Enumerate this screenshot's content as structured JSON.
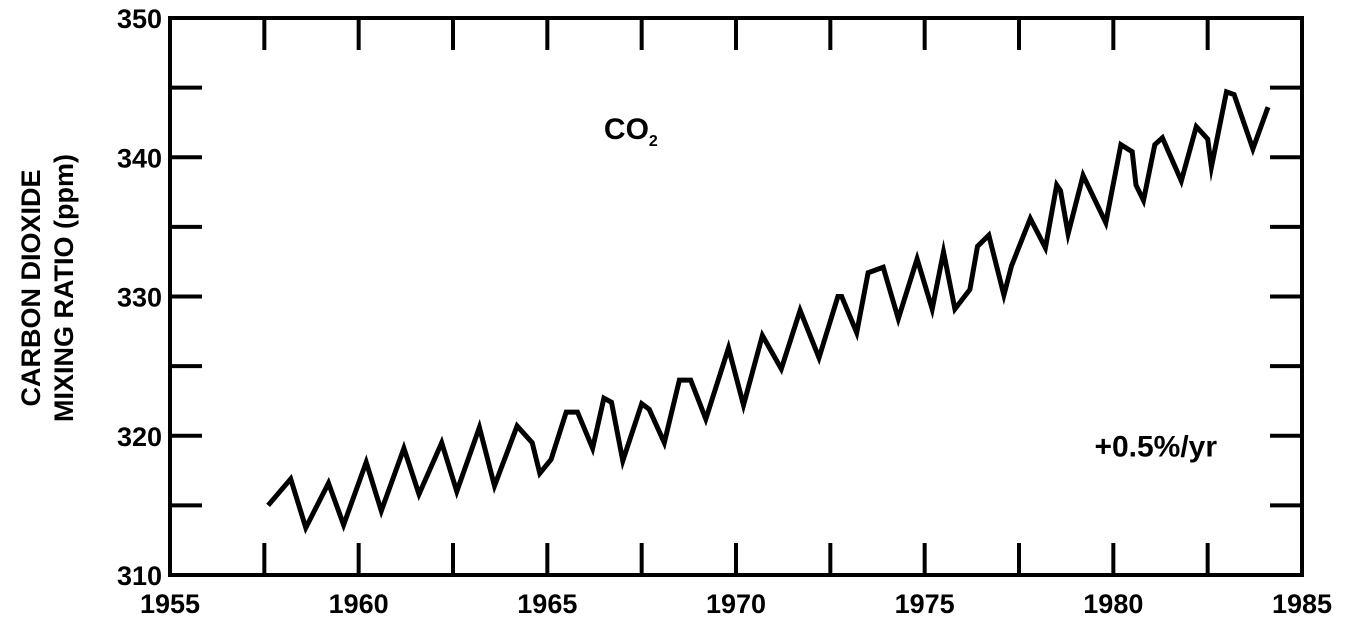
{
  "chart_data": {
    "type": "line",
    "title": "",
    "xlabel": "",
    "ylabel_lines": [
      "CARBON DIOXIDE",
      "MIXING RATIO (ppm)"
    ],
    "xlim": [
      1955,
      1985
    ],
    "ylim": [
      310,
      350
    ],
    "x_ticks": [
      1955,
      1960,
      1965,
      1970,
      1975,
      1980,
      1985
    ],
    "y_ticks": [
      310,
      320,
      330,
      340,
      350
    ],
    "grid": false,
    "line_color": "#000000",
    "annotations": [
      {
        "id": "species",
        "text": "CO",
        "subscript": "2",
        "x": 1966.5,
        "y": 341.3
      },
      {
        "id": "rate",
        "text": "+0.5%/yr",
        "x": 1979.5,
        "y": 318.5
      }
    ],
    "series": [
      {
        "x": [
          1957.6,
          1958.2,
          1958.6,
          1959.2,
          1959.6,
          1960.2,
          1960.6,
          1961.2,
          1961.6,
          1962.2,
          1962.6,
          1963.2,
          1963.6,
          1964.2,
          1964.6,
          1964.8,
          1965.1,
          1965.5,
          1965.8,
          1966.2,
          1966.5,
          1966.7,
          1967.0,
          1967.5,
          1967.7,
          1968.1,
          1968.5,
          1968.8,
          1969.2,
          1969.8,
          1970.2,
          1970.7,
          1971.2,
          1971.7,
          1972.2,
          1972.7,
          1972.8,
          1973.2,
          1973.5,
          1973.9,
          1974.3,
          1974.8,
          1975.2,
          1975.5,
          1975.8,
          1976.2,
          1976.4,
          1976.7,
          1977.1,
          1977.3,
          1977.8,
          1978.2,
          1978.5,
          1978.6,
          1978.8,
          1979.2,
          1979.8,
          1980.2,
          1980.5,
          1980.6,
          1980.8,
          1981.1,
          1981.3,
          1981.8,
          1982.2,
          1982.5,
          1982.6,
          1983.0,
          1983.2,
          1983.7,
          1984.1
        ],
        "y": [
          315.0,
          316.9,
          313.4,
          316.6,
          313.6,
          318.1,
          314.6,
          319.1,
          315.8,
          319.5,
          316.0,
          320.6,
          316.4,
          320.7,
          319.5,
          317.3,
          318.3,
          321.7,
          321.7,
          319.1,
          322.7,
          322.4,
          318.2,
          322.3,
          321.9,
          319.5,
          324.0,
          324.0,
          321.2,
          326.3,
          322.2,
          327.2,
          324.8,
          329.0,
          325.6,
          330.0,
          330.0,
          327.4,
          331.7,
          332.1,
          328.4,
          332.7,
          329.1,
          333.2,
          329.1,
          330.5,
          333.6,
          334.4,
          330.1,
          332.2,
          335.6,
          333.5,
          338.0,
          337.6,
          334.5,
          338.7,
          335.3,
          340.9,
          340.4,
          338.0,
          336.9,
          340.9,
          341.4,
          338.3,
          342.2,
          341.3,
          339.3,
          344.7,
          344.5,
          340.6,
          343.6
        ]
      }
    ]
  }
}
